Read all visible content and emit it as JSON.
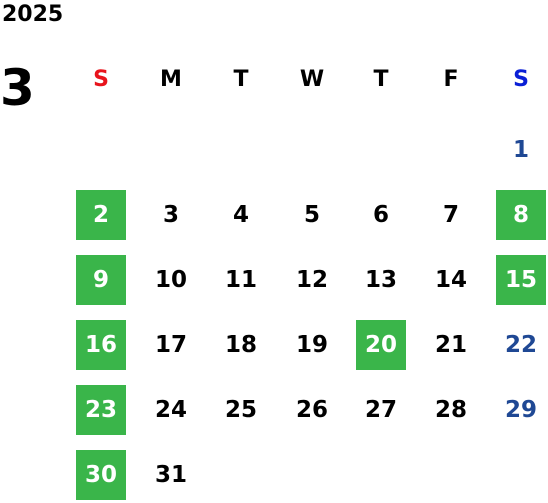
{
  "year": "2025",
  "month": "3",
  "weekdays": [
    {
      "label": "S",
      "kind": "sunday"
    },
    {
      "label": "M"
    },
    {
      "label": "T"
    },
    {
      "label": "W"
    },
    {
      "label": "T"
    },
    {
      "label": "F"
    },
    {
      "label": "S",
      "kind": "saturday"
    }
  ],
  "weeks": [
    [
      null,
      null,
      null,
      null,
      null,
      null,
      {
        "day": 1
      }
    ],
    [
      {
        "day": 2,
        "holiday": true
      },
      {
        "day": 3
      },
      {
        "day": 4
      },
      {
        "day": 5
      },
      {
        "day": 6
      },
      {
        "day": 7
      },
      {
        "day": 8,
        "holiday": true
      }
    ],
    [
      {
        "day": 9,
        "holiday": true
      },
      {
        "day": 10
      },
      {
        "day": 11
      },
      {
        "day": 12
      },
      {
        "day": 13
      },
      {
        "day": 14
      },
      {
        "day": 15,
        "holiday": true
      }
    ],
    [
      {
        "day": 16,
        "holiday": true
      },
      {
        "day": 17
      },
      {
        "day": 18
      },
      {
        "day": 19
      },
      {
        "day": 20,
        "holiday": true
      },
      {
        "day": 21
      },
      {
        "day": 22
      }
    ],
    [
      {
        "day": 23,
        "holiday": true
      },
      {
        "day": 24
      },
      {
        "day": 25
      },
      {
        "day": 26
      },
      {
        "day": 27
      },
      {
        "day": 28
      },
      {
        "day": 29
      }
    ],
    [
      {
        "day": 30,
        "holiday": true
      },
      {
        "day": 31
      }
    ]
  ]
}
